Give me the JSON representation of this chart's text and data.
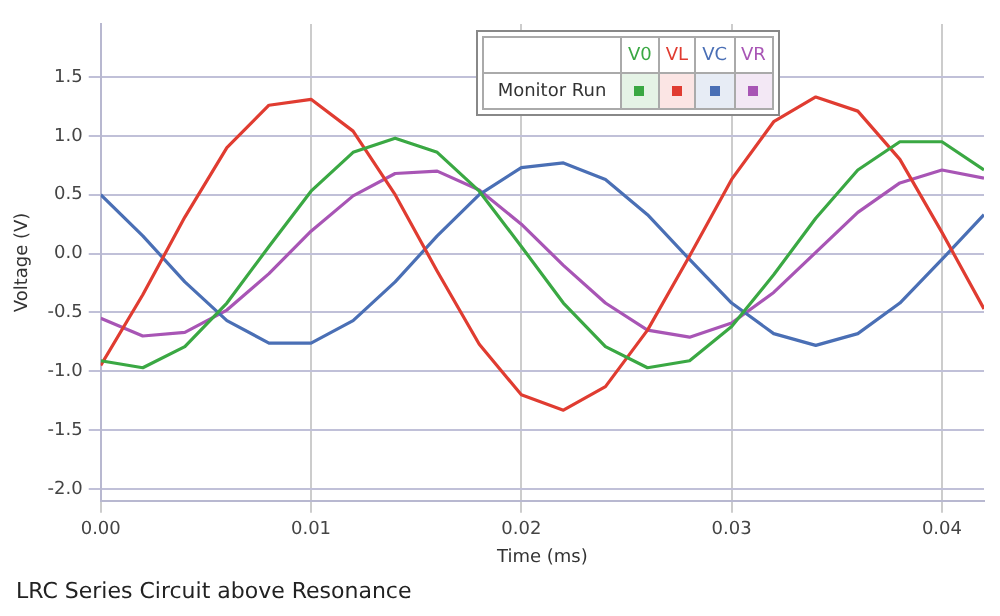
{
  "chart_data": {
    "type": "line",
    "title": "LRC Series Circuit above Resonance",
    "xlabel": "Time (ms)",
    "ylabel": "Voltage (V)",
    "legend_title": "Monitor Run",
    "legend": "top",
    "grid": true,
    "marker": "none",
    "line_style": "solid",
    "x": [
      0,
      0.002,
      0.004,
      0.006,
      0.008,
      0.01,
      0.012,
      0.014,
      0.016,
      0.018,
      0.02,
      0.022,
      0.024,
      0.026,
      0.028,
      0.03,
      0.032,
      0.034,
      0.036,
      0.038,
      0.04,
      0.042
    ],
    "xlim": [
      0,
      0.042
    ],
    "xticks": [
      {
        "value": 0,
        "label": "0.00"
      },
      0.01,
      0.02,
      0.03,
      0.04
    ],
    "ylim": [
      -2.1,
      1.95
    ],
    "yticks": [
      {
        "value": -2,
        "label": "-2.0"
      },
      -1.5,
      {
        "value": -1,
        "label": "-1.0"
      },
      -0.5,
      {
        "value": 0,
        "label": "0.0"
      },
      0.5,
      {
        "value": 1,
        "label": "1.0"
      },
      1.5
    ],
    "series": [
      {
        "name": "V0",
        "color": "#3aa843",
        "values": [
          -0.91,
          -0.97,
          -0.79,
          -0.42,
          0.06,
          0.53,
          0.86,
          0.98,
          0.86,
          0.53,
          0.06,
          -0.42,
          -0.79,
          -0.97,
          -0.91,
          -0.62,
          -0.18,
          0.3,
          0.71,
          0.95,
          0.95,
          0.71
        ]
      },
      {
        "name": "VL",
        "color": "#e03c31",
        "values": [
          -0.95,
          -0.35,
          0.31,
          0.9,
          1.26,
          1.31,
          1.04,
          0.5,
          -0.15,
          -0.77,
          -1.2,
          -1.33,
          -1.13,
          -0.65,
          -0.02,
          0.63,
          1.12,
          1.33,
          1.21,
          0.8,
          0.18,
          -0.47
        ]
      },
      {
        "name": "VC",
        "color": "#4a6fb5",
        "values": [
          0.5,
          0.15,
          -0.24,
          -0.57,
          -0.76,
          -0.76,
          -0.57,
          -0.24,
          0.15,
          0.5,
          0.73,
          0.77,
          0.63,
          0.33,
          -0.05,
          -0.42,
          -0.68,
          -0.78,
          -0.68,
          -0.42,
          -0.05,
          0.33
        ]
      },
      {
        "name": "VR",
        "color": "#a855b5",
        "values": [
          -0.55,
          -0.7,
          -0.67,
          -0.48,
          -0.17,
          0.19,
          0.49,
          0.68,
          0.7,
          0.54,
          0.25,
          -0.1,
          -0.42,
          -0.65,
          -0.71,
          -0.59,
          -0.33,
          0.01,
          0.35,
          0.6,
          0.71,
          0.64
        ]
      }
    ]
  }
}
